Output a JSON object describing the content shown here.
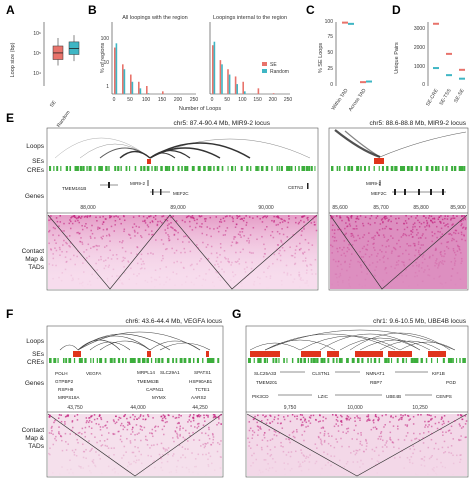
{
  "colors": {
    "se": "#e8736b",
    "random": "#3fb6c4",
    "cre": "#3cae3c",
    "se_track": "#e0341c",
    "heat": "#c2227e"
  },
  "panels": {
    "A": {
      "letter": "A",
      "ylabel": "Loop size (bp)",
      "yticks": [
        "10⁴",
        "10⁵",
        "10⁶"
      ],
      "xticks": [
        "SE",
        "Random"
      ]
    },
    "B": {
      "letter": "B",
      "ylabel": "% of regions",
      "xlabel": "Number of Loops",
      "title_left": "All loopings with the region",
      "title_right": "Loopings internal to the region",
      "yticks": [
        "1",
        "10",
        "100"
      ],
      "xticks_left": [
        "0",
        "50",
        "100",
        "150",
        "200",
        "250"
      ],
      "xticks_right": [
        "0",
        "50",
        "100",
        "150",
        "200",
        "250"
      ],
      "legend": [
        "SE",
        "Random"
      ]
    },
    "C": {
      "letter": "C",
      "ylabel": "% SE Loops",
      "yticks": [
        "0",
        "25",
        "50",
        "75",
        "100"
      ],
      "xticks": [
        "Within TAD",
        "Across TAD"
      ]
    },
    "D": {
      "letter": "D",
      "ylabel": "Unique Pairs",
      "yticks": [
        "0",
        "1000",
        "2000",
        "3000"
      ],
      "xticks": [
        "SE-CRE",
        "SE-TSS",
        "SE-SE"
      ]
    },
    "E": {
      "letter": "E",
      "title_main": "chr5: 87.4-90.4 Mb, MIR9-2 locus",
      "title_zoom": "chr5: 88.6-88.8 Mb, MIR9-2 locus",
      "genes_main": [
        "TMEM161B",
        "MIR9-2",
        "MEF2C",
        "CETN3"
      ],
      "genes_zoom": [
        "MIR9-2",
        "MEF2C"
      ],
      "coords_main": [
        "88,000",
        "89,000",
        "90,000"
      ],
      "coords_zoom": [
        "85,600",
        "85,700",
        "85,800",
        "85,900"
      ]
    },
    "F": {
      "letter": "F",
      "title": "chr6: 43.6-44.4 Mb, VEGFA locus",
      "genes": [
        "POLH",
        "VEGFA",
        "MRPL14",
        "SLC29A1",
        "SPATS1",
        "GTPBP2",
        "TMEM63B",
        "HSP90AB1",
        "RSPH9",
        "CAPN11",
        "TCTE1",
        "MRPS18A",
        "MYMX",
        "AARS2"
      ],
      "coords": [
        "43,750",
        "44,000",
        "44,250"
      ]
    },
    "G": {
      "letter": "G",
      "title": "chr1: 9.6-10.5 Mb, UBE4B locus",
      "genes": [
        "SLC25A33",
        "CLSTN1",
        "NMNAT1",
        "KIF1B",
        "TMEM201",
        "RBP7",
        "PGD",
        "PIK3CD",
        "LZIC",
        "UBE4B",
        "CENPS"
      ],
      "coords": [
        "9,750",
        "10,000",
        "10,250"
      ]
    }
  },
  "track_labels": {
    "loops": "Loops",
    "ses": "SEs",
    "cres": "CREs",
    "genes": "Genes",
    "contact_1": "Contact",
    "contact_2": "Map &",
    "contact_3": "TADs"
  },
  "chart_data": [
    {
      "type": "box",
      "panel": "A",
      "categories": [
        "SE",
        "Random"
      ],
      "series": [
        {
          "name": "SE",
          "values": [
            21000,
            42000,
            90000,
            200000,
            500000
          ]
        },
        {
          "name": "Random",
          "values": [
            35000,
            75000,
            150000,
            320000,
            700000
          ]
        }
      ]
    },
    {
      "type": "bar",
      "panel": "B-left",
      "x": [
        0,
        25,
        50,
        75,
        100,
        150,
        200,
        250
      ],
      "series": [
        {
          "name": "SE",
          "values": [
            40,
            8,
            3,
            1.5,
            1,
            0.6,
            0.4,
            0.3
          ]
        },
        {
          "name": "Random",
          "values": [
            60,
            5,
            1.5,
            0.8,
            0.5,
            0.3,
            0.2,
            0.1
          ]
        }
      ]
    },
    {
      "type": "bar",
      "panel": "B-right",
      "x": [
        0,
        25,
        50,
        75,
        100,
        150,
        200,
        250
      ],
      "series": [
        {
          "name": "SE",
          "values": [
            50,
            12,
            5,
            2.5,
            1.5,
            0.8,
            0.5,
            0.3
          ]
        },
        {
          "name": "Random",
          "values": [
            70,
            8,
            3,
            1.2,
            0.6,
            0.3,
            0.2,
            0.1
          ]
        }
      ]
    },
    {
      "type": "box",
      "panel": "C",
      "categories": [
        "Within TAD",
        "Across TAD"
      ],
      "series": [
        {
          "name": "SE",
          "values": [
            99,
            3
          ]
        },
        {
          "name": "Random",
          "values": [
            97,
            4
          ]
        }
      ]
    },
    {
      "type": "box",
      "panel": "D",
      "categories": [
        "SE-CRE",
        "SE-TSS",
        "SE-SE"
      ],
      "series": [
        {
          "name": "SE",
          "values": [
            3400,
            1700,
            800
          ]
        },
        {
          "name": "Random",
          "values": [
            900,
            500,
            300
          ]
        }
      ]
    }
  ]
}
